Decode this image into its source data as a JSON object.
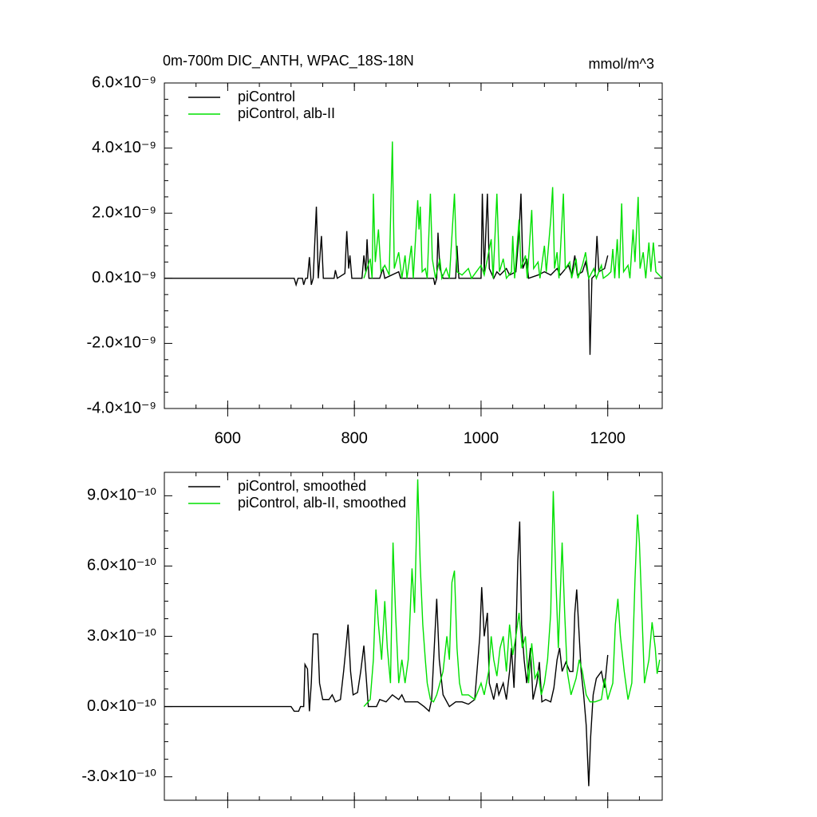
{
  "chart_data": [
    {
      "type": "line",
      "title": "0m-700m DIC_ANTH, WPAC_18S-18N",
      "units": "mmol/m^3",
      "legend": "upper left",
      "xlim": [
        500,
        1286
      ],
      "xticks": [
        600,
        800,
        1000,
        1200
      ],
      "ylim": [
        -4e-09,
        6e-09
      ],
      "yticks": [
        {
          "value": 6e-09,
          "label": "6.0×10⁻⁹"
        },
        {
          "value": 4e-09,
          "label": "4.0×10⁻⁹"
        },
        {
          "value": 2e-09,
          "label": "2.0×10⁻⁹"
        },
        {
          "value": 0,
          "label": "0.0×10⁻⁹"
        },
        {
          "value": -2e-09,
          "label": "-2.0×10⁻⁹"
        },
        {
          "value": -4e-09,
          "label": "-4.0×10⁻⁹"
        }
      ],
      "series": [
        {
          "name": "piControl",
          "color": "#000000",
          "x": [
            500,
            705,
            708,
            711,
            718,
            720,
            723,
            726,
            729,
            732,
            735,
            740,
            743,
            748,
            751,
            768,
            770,
            773,
            785,
            788,
            791,
            793,
            796,
            812,
            815,
            818,
            820,
            823,
            840,
            845,
            848,
            870,
            873,
            925,
            927,
            930,
            932,
            935,
            940,
            960,
            962,
            965,
            1000,
            1002,
            1005,
            1010,
            1013,
            1020,
            1025,
            1030,
            1040,
            1045,
            1055,
            1060,
            1063,
            1066,
            1072,
            1075,
            1090,
            1100,
            1110,
            1120,
            1125,
            1138,
            1143,
            1148,
            1152,
            1160,
            1165,
            1170,
            1172,
            1175,
            1180,
            1183,
            1186,
            1195,
            1200
          ],
          "values": [
            0,
            0,
            -2e-10,
            0,
            0,
            -2e-10,
            0,
            0,
            6.5e-10,
            -2e-10,
            0,
            2.2e-09,
            0,
            1.3e-09,
            0,
            0,
            2.5e-10,
            0,
            1.5e-10,
            1.45e-09,
            3e-10,
            7e-10,
            0,
            0,
            7e-10,
            2e-10,
            1.2e-09,
            0,
            0,
            3e-10,
            0,
            2e-10,
            0,
            0,
            -2e-10,
            0,
            1.4e-09,
            3e-10,
            0,
            0,
            1e-09,
            0,
            0,
            2.6e-09,
            2e-10,
            2.6e-09,
            3e-10,
            0,
            2e-10,
            1e-10,
            3e-10,
            1e-10,
            2e-10,
            1.4e-09,
            2.6e-09,
            3e-10,
            6e-10,
            0,
            1e-10,
            2e-10,
            1e-10,
            3e-10,
            1e-10,
            4e-10,
            1e-10,
            7e-10,
            1e-10,
            2e-10,
            5e-10,
            0,
            -2.35e-09,
            0,
            1e-10,
            1.3e-09,
            2e-10,
            3e-10,
            7e-10
          ]
        },
        {
          "name": "piControl, alb-II",
          "color": "#00e000",
          "x": [
            815,
            825,
            828,
            830,
            833,
            838,
            842,
            848,
            855,
            860,
            863,
            870,
            875,
            880,
            883,
            890,
            893,
            900,
            902,
            904,
            907,
            912,
            915,
            920,
            923,
            928,
            935,
            938,
            945,
            950,
            958,
            962,
            970,
            980,
            985,
            1000,
            1005,
            1016,
            1019,
            1025,
            1029,
            1035,
            1040,
            1048,
            1050,
            1053,
            1060,
            1063,
            1070,
            1073,
            1080,
            1083,
            1090,
            1093,
            1100,
            1103,
            1110,
            1113,
            1116,
            1120,
            1123,
            1130,
            1133,
            1140,
            1143,
            1150,
            1153,
            1160,
            1165,
            1170,
            1178,
            1182,
            1190,
            1193,
            1200,
            1205,
            1208,
            1211,
            1215,
            1218,
            1222,
            1225,
            1232,
            1235,
            1240,
            1243,
            1248,
            1251,
            1256,
            1260,
            1265,
            1268,
            1272,
            1276,
            1286
          ],
          "values": [
            0,
            6e-10,
            0,
            2.6e-09,
            5e-10,
            1.5e-09,
            2e-10,
            4e-10,
            1e-10,
            4.2e-09,
            3e-10,
            8e-10,
            0,
            7e-10,
            0,
            1e-09,
            0,
            2.4e-09,
            1.5e-09,
            2.2e-09,
            2e-10,
            3e-10,
            0,
            2.6e-09,
            6e-10,
            0,
            6e-10,
            0,
            3e-10,
            0,
            2.6e-09,
            2e-10,
            1e-10,
            3e-10,
            0,
            4e-10,
            1e-10,
            1.2e-09,
            0,
            2.6e-09,
            2e-10,
            6e-10,
            0,
            2e-10,
            1.3e-09,
            0,
            1.8e-09,
            3e-10,
            7e-10,
            0,
            2.1e-09,
            3e-10,
            5e-10,
            0,
            1e-09,
            2e-10,
            1.8e-09,
            2.8e-09,
            3e-10,
            8e-10,
            0,
            2.6e-09,
            3e-10,
            5e-10,
            0,
            6e-10,
            0,
            4e-10,
            8e-10,
            0,
            3e-10,
            0,
            4e-10,
            0,
            1e-10,
            2e-10,
            9e-10,
            0,
            1.2e-09,
            0,
            2.3e-09,
            2e-10,
            4e-10,
            0,
            1.5e-09,
            5e-10,
            2.5e-09,
            3e-10,
            8e-10,
            0,
            1.1e-09,
            2e-10,
            1.1e-09,
            2e-10,
            0
          ]
        }
      ]
    },
    {
      "type": "line",
      "legend": "upper left",
      "xlim": [
        500,
        1286
      ],
      "xticks": [
        600,
        800,
        1000,
        1200
      ],
      "ylim": [
        -4e-10,
        1e-09
      ],
      "yticks": [
        {
          "value": 9e-10,
          "label": "9.0×10⁻¹⁰"
        },
        {
          "value": 6e-10,
          "label": "6.0×10⁻¹⁰"
        },
        {
          "value": 3e-10,
          "label": "3.0×10⁻¹⁰"
        },
        {
          "value": 0,
          "label": "0.0×10⁻¹⁰"
        },
        {
          "value": -3e-10,
          "label": "-3.0×10⁻¹⁰"
        }
      ],
      "series": [
        {
          "name": "piControl, smoothed",
          "color": "#000000",
          "x": [
            500,
            700,
            705,
            712,
            715,
            720,
            722,
            726,
            729,
            732,
            735,
            742,
            745,
            750,
            760,
            765,
            770,
            778,
            783,
            787,
            790,
            794,
            798,
            805,
            810,
            815,
            818,
            822,
            835,
            840,
            850,
            860,
            870,
            875,
            880,
            900,
            910,
            918,
            922,
            927,
            930,
            934,
            940,
            950,
            960,
            970,
            980,
            990,
            998,
            1001,
            1005,
            1010,
            1013,
            1020,
            1025,
            1028,
            1035,
            1040,
            1045,
            1048,
            1052,
            1055,
            1058,
            1061,
            1064,
            1068,
            1072,
            1078,
            1082,
            1088,
            1092,
            1096,
            1102,
            1110,
            1115,
            1120,
            1124,
            1128,
            1134,
            1140,
            1145,
            1148,
            1151,
            1155,
            1158,
            1162,
            1166,
            1170,
            1173,
            1177,
            1182,
            1190,
            1195,
            1200
          ],
          "values": [
            0,
            0,
            -2e-11,
            -2e-11,
            0,
            0,
            1.8e-10,
            1.6e-10,
            -2e-11,
            1e-10,
            3.1e-10,
            3.1e-10,
            1e-10,
            3e-11,
            3e-11,
            5e-11,
            2e-11,
            3e-11,
            1.5e-10,
            2.6e-10,
            3.5e-10,
            1.5e-10,
            5e-11,
            6e-11,
            1.5e-10,
            2.6e-10,
            1.5e-10,
            0,
            0,
            3e-11,
            2e-11,
            5e-11,
            3e-11,
            5e-11,
            2e-11,
            2e-11,
            0,
            -2e-11,
            3e-11,
            3e-10,
            4.6e-10,
            2e-10,
            5e-11,
            0,
            2e-11,
            2e-11,
            1e-11,
            3e-11,
            3e-10,
            5.1e-10,
            3e-10,
            4e-10,
            1e-10,
            3e-11,
            1e-10,
            5e-11,
            1e-10,
            3e-11,
            1.5e-10,
            2.5e-10,
            8e-11,
            3e-10,
            6.2e-10,
            7.9e-10,
            3.5e-10,
            2e-10,
            1e-10,
            2.5e-10,
            3e-11,
            1e-10,
            1.9e-10,
            2e-11,
            3e-11,
            2e-11,
            8e-11,
            2e-10,
            2.5e-10,
            1.5e-10,
            1.9e-10,
            1.5e-10,
            1.5e-10,
            4e-10,
            5e-10,
            3e-10,
            1.5e-10,
            5e-11,
            -8e-11,
            -3.4e-10,
            -1.3e-10,
            5e-11,
            1.2e-10,
            1.5e-10,
            8e-11,
            2.2e-10
          ]
        },
        {
          "name": "piControl, alb-II, smoothed",
          "color": "#00e000",
          "x": [
            815,
            825,
            830,
            834,
            838,
            843,
            848,
            852,
            857,
            861,
            865,
            870,
            875,
            880,
            885,
            891,
            895,
            900,
            904,
            908,
            912,
            915,
            920,
            925,
            930,
            940,
            946,
            950,
            954,
            958,
            962,
            966,
            970,
            980,
            990,
            1000,
            1005,
            1012,
            1016,
            1020,
            1025,
            1030,
            1035,
            1040,
            1045,
            1050,
            1055,
            1060,
            1065,
            1070,
            1075,
            1080,
            1085,
            1090,
            1095,
            1100,
            1105,
            1110,
            1114,
            1118,
            1122,
            1128,
            1132,
            1136,
            1142,
            1150,
            1155,
            1160,
            1166,
            1172,
            1180,
            1190,
            1195,
            1200,
            1208,
            1212,
            1216,
            1220,
            1226,
            1232,
            1238,
            1243,
            1247,
            1250,
            1254,
            1258,
            1265,
            1270,
            1275,
            1278,
            1282
          ],
          "values": [
            0,
            3e-11,
            2e-10,
            5e-10,
            3.5e-10,
            2e-10,
            4.5e-10,
            2.5e-10,
            1e-10,
            7e-10,
            4e-10,
            1e-10,
            2e-10,
            1e-10,
            2e-10,
            5.9e-10,
            4e-10,
            9.7e-10,
            6e-10,
            3.5e-10,
            2e-10,
            1e-10,
            3e-11,
            2e-11,
            5e-11,
            1.5e-10,
            3e-10,
            2e-10,
            5.3e-10,
            5.8e-10,
            2.5e-10,
            1e-10,
            5e-11,
            5e-11,
            3e-11,
            1e-10,
            5e-11,
            1.5e-10,
            3e-10,
            2e-10,
            1.3e-10,
            2.5e-10,
            3e-10,
            1.5e-10,
            3.5e-10,
            2.2e-10,
            3e-10,
            4e-10,
            2.5e-10,
            3e-10,
            1e-10,
            2.7e-10,
            1.2e-10,
            1.5e-10,
            5e-11,
            1e-10,
            2e-10,
            4e-10,
            9.2e-10,
            5.5e-10,
            2.5e-10,
            7e-10,
            4e-10,
            1.5e-10,
            5e-11,
            1.2e-10,
            2e-10,
            1.5e-10,
            5e-11,
            2e-11,
            2e-11,
            3e-11,
            1.2e-10,
            3e-11,
            1e-10,
            3.5e-10,
            4.6e-10,
            3e-10,
            1.5e-10,
            3e-11,
            1e-10,
            5.4e-10,
            8.2e-10,
            7e-10,
            4e-10,
            1e-10,
            2e-10,
            3.6e-10,
            2.5e-10,
            1.4e-10,
            2e-10
          ]
        }
      ]
    }
  ]
}
